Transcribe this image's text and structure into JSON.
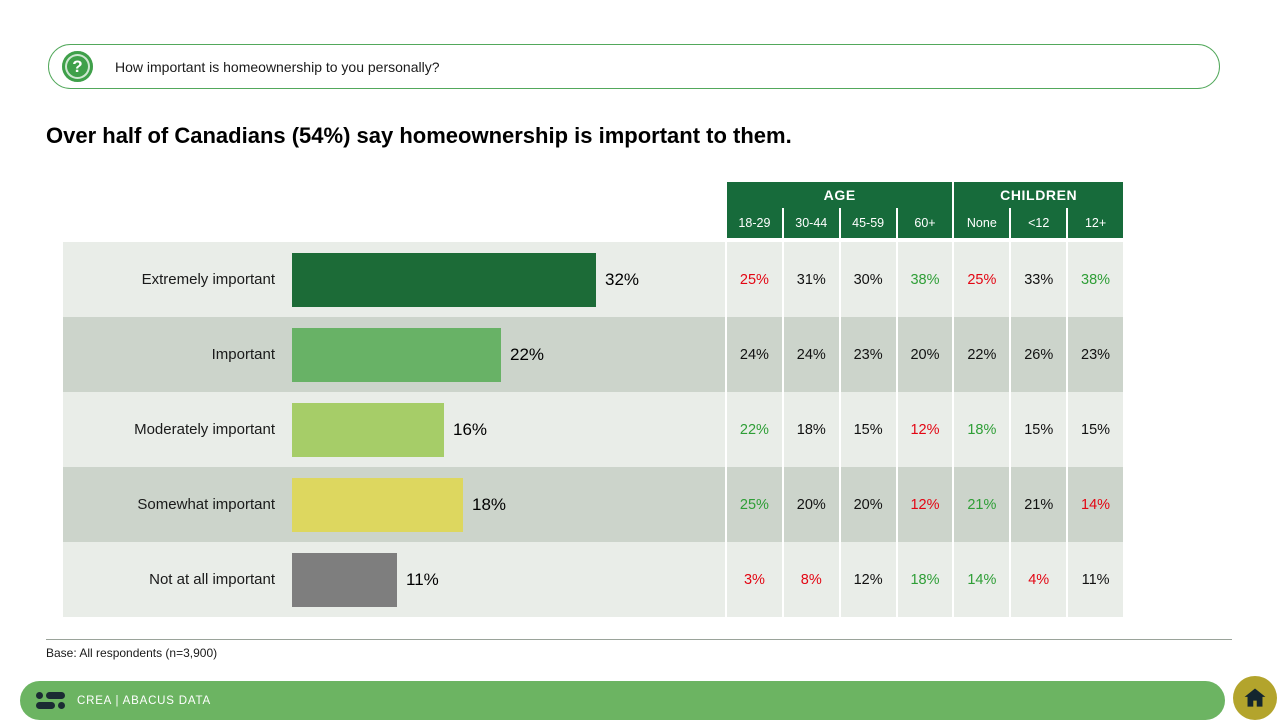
{
  "question": {
    "text": "How important is homeownership to you personally?"
  },
  "headline": "Over half of Canadians (54%) say homeownership is important to them.",
  "table": {
    "groups": [
      {
        "label": "AGE"
      },
      {
        "label": "CHILDREN"
      }
    ],
    "columns": [
      "18-29",
      "30-44",
      "45-59",
      "60+",
      "None",
      "<12",
      "12+"
    ],
    "rows": [
      {
        "label": "Extremely important",
        "value": 32,
        "value_label": "32%",
        "bar_color": "#1C6B37",
        "cells": [
          {
            "text": "25%",
            "c": "red"
          },
          {
            "text": "31%",
            "c": "black"
          },
          {
            "text": "30%",
            "c": "black"
          },
          {
            "text": "38%",
            "c": "green"
          },
          {
            "text": "25%",
            "c": "red"
          },
          {
            "text": "33%",
            "c": "black"
          },
          {
            "text": "38%",
            "c": "green"
          }
        ]
      },
      {
        "label": "Important",
        "value": 22,
        "value_label": "22%",
        "bar_color": "#68B266",
        "cells": [
          {
            "text": "24%",
            "c": "black"
          },
          {
            "text": "24%",
            "c": "black"
          },
          {
            "text": "23%",
            "c": "black"
          },
          {
            "text": "20%",
            "c": "black"
          },
          {
            "text": "22%",
            "c": "black"
          },
          {
            "text": "26%",
            "c": "black"
          },
          {
            "text": "23%",
            "c": "black"
          }
        ]
      },
      {
        "label": "Moderately important",
        "value": 16,
        "value_label": "16%",
        "bar_color": "#A6CD68",
        "cells": [
          {
            "text": "22%",
            "c": "green"
          },
          {
            "text": "18%",
            "c": "black"
          },
          {
            "text": "15%",
            "c": "black"
          },
          {
            "text": "12%",
            "c": "red"
          },
          {
            "text": "18%",
            "c": "green"
          },
          {
            "text": "15%",
            "c": "black"
          },
          {
            "text": "15%",
            "c": "black"
          }
        ]
      },
      {
        "label": "Somewhat important",
        "value": 18,
        "value_label": "18%",
        "bar_color": "#DDD75F",
        "cells": [
          {
            "text": "25%",
            "c": "green"
          },
          {
            "text": "20%",
            "c": "black"
          },
          {
            "text": "20%",
            "c": "black"
          },
          {
            "text": "12%",
            "c": "red"
          },
          {
            "text": "21%",
            "c": "green"
          },
          {
            "text": "21%",
            "c": "black"
          },
          {
            "text": "14%",
            "c": "red"
          }
        ]
      },
      {
        "label": "Not at all important",
        "value": 11,
        "value_label": "11%",
        "bar_color": "#7E7E7E",
        "cells": [
          {
            "text": "3%",
            "c": "red"
          },
          {
            "text": "8%",
            "c": "red"
          },
          {
            "text": "12%",
            "c": "black"
          },
          {
            "text": "18%",
            "c": "green"
          },
          {
            "text": "14%",
            "c": "green"
          },
          {
            "text": "4%",
            "c": "red"
          },
          {
            "text": "11%",
            "c": "black"
          }
        ]
      }
    ]
  },
  "base_note": "Base: All respondents (n=3,900)",
  "footer": {
    "brand": "CREA | ABACUS DATA"
  },
  "colors": {
    "header_green": "#176B3B",
    "footer_green": "#6CB462",
    "row_light": "#E9EDE8",
    "row_dark": "#CCD4CB",
    "cell_red": "#E30613",
    "cell_green": "#2E9E36",
    "pill_border": "#52A85B",
    "house_badge": "#B3A42C"
  },
  "chart_data": {
    "type": "bar",
    "orientation": "horizontal",
    "title": "Over half of Canadians (54%) say homeownership is important to them.",
    "question": "How important is homeownership to you personally?",
    "categories": [
      "Extremely important",
      "Important",
      "Moderately important",
      "Somewhat important",
      "Not at all important"
    ],
    "values": [
      32,
      22,
      16,
      18,
      11
    ],
    "unit": "%",
    "xlim": [
      0,
      40
    ],
    "crosstab": {
      "group_headers": [
        {
          "label": "AGE",
          "columns": [
            "18-29",
            "30-44",
            "45-59",
            "60+"
          ]
        },
        {
          "label": "CHILDREN",
          "columns": [
            "None",
            "<12",
            "12+"
          ]
        }
      ],
      "rows": [
        {
          "label": "Extremely important",
          "values": [
            25,
            31,
            30,
            38,
            25,
            33,
            38
          ]
        },
        {
          "label": "Important",
          "values": [
            24,
            24,
            23,
            20,
            22,
            26,
            23
          ]
        },
        {
          "label": "Moderately important",
          "values": [
            22,
            18,
            15,
            12,
            18,
            15,
            15
          ]
        },
        {
          "label": "Somewhat important",
          "values": [
            25,
            20,
            20,
            12,
            21,
            21,
            14
          ]
        },
        {
          "label": "Not at all important",
          "values": [
            3,
            8,
            12,
            18,
            14,
            4,
            11
          ]
        }
      ]
    },
    "base": "All respondents (n=3,900)"
  }
}
